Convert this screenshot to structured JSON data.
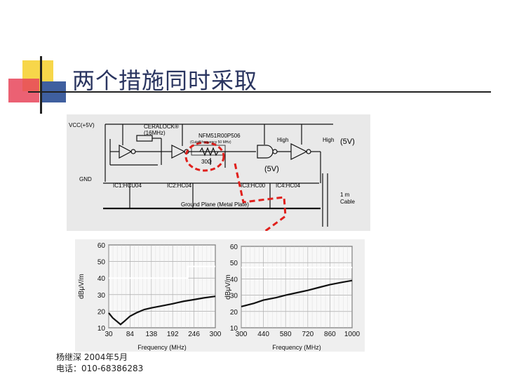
{
  "slide": {
    "title": "两个措施同时采取",
    "footer_line1": "杨继深   2004年5月",
    "footer_line2": "电话：010-68386283",
    "deco_colors": {
      "yellow": "#f7d64a",
      "red": "#e8455a",
      "blue": "#3f5f9f",
      "dark": "#222222"
    }
  },
  "schematic": {
    "vcc": "VCC(+5V)",
    "gnd": "GND",
    "ceralock": "CERALOCK®",
    "ceralock_freq": "(16MHz)",
    "filter_part": "NFM51R00P506",
    "filter_note": "(Cutoff frequency    50 MHz)",
    "resistor": "30Ω",
    "high1": "High",
    "high2": "High",
    "v5_right": "(5V)",
    "v5_mid": "(5V)",
    "ic1": "IC1:HCU04",
    "ic2": "IC2:HC04",
    "ic3": "IC3:HC00",
    "ic4": "IC4:HC04",
    "cable": "1 m",
    "cable2": "Cable",
    "ground_plane": "Ground Plane (Metal Plate)"
  },
  "chart_data": [
    {
      "type": "line",
      "ylabel": "dBμV/m",
      "xlabel": "Frequency (MHz)",
      "x_ticks": [
        "30",
        "84",
        "138",
        "192",
        "246",
        "300"
      ],
      "y_ticks": [
        "10",
        "20",
        "30",
        "40",
        "50",
        "60"
      ],
      "ylim": [
        10,
        60
      ],
      "xlim": [
        30,
        300
      ],
      "limit_line": [
        [
          30,
          40
        ],
        [
          230,
          40
        ],
        [
          230,
          47
        ],
        [
          300,
          47
        ]
      ],
      "series": [
        {
          "x": [
            30,
            40,
            50,
            60,
            70,
            84,
            100,
            120,
            138,
            160,
            192,
            220,
            246,
            270,
            300
          ],
          "y": [
            19,
            16,
            14,
            12,
            14,
            17,
            19,
            21,
            22,
            23,
            24.5,
            26,
            27,
            28,
            29
          ]
        }
      ]
    },
    {
      "type": "line",
      "ylabel": "dBμV/m",
      "xlabel": "Frequency (MHz)",
      "x_ticks": [
        "300",
        "440",
        "580",
        "720",
        "860",
        "1000"
      ],
      "y_ticks": [
        "10",
        "20",
        "30",
        "40",
        "50",
        "60"
      ],
      "ylim": [
        10,
        60
      ],
      "xlim": [
        300,
        1000
      ],
      "limit_line": [
        [
          300,
          47
        ],
        [
          1000,
          47
        ]
      ],
      "series": [
        {
          "x": [
            300,
            380,
            440,
            520,
            580,
            650,
            720,
            800,
            860,
            940,
            1000
          ],
          "y": [
            23,
            25,
            27,
            28.5,
            30,
            31.5,
            33,
            35,
            36.5,
            38,
            39
          ]
        }
      ]
    }
  ]
}
